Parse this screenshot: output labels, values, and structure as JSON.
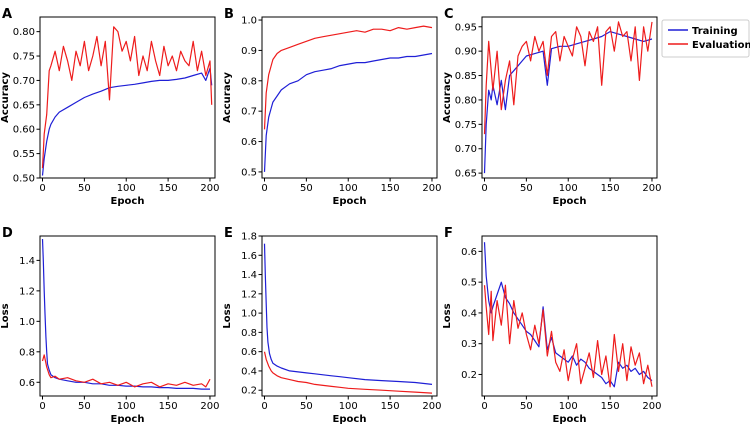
{
  "legend": {
    "entries": [
      {
        "label": "Training",
        "color": "#1f1fd6"
      },
      {
        "label": "Evaluation",
        "color": "#ee1c1c"
      }
    ]
  },
  "chart_data": [
    {
      "panel": "A",
      "type": "line",
      "xlabel": "Epoch",
      "ylabel": "Accuracy",
      "xlim": [
        -3,
        206
      ],
      "ylim": [
        0.5,
        0.83
      ],
      "xticks": [
        0,
        50,
        100,
        150,
        200
      ],
      "yticks": [
        0.5,
        0.55,
        0.6,
        0.65,
        0.7,
        0.75,
        0.8
      ],
      "ytick_labels": [
        "0.50",
        "0.55",
        "0.60",
        "0.65",
        "0.70",
        "0.75",
        "0.80"
      ],
      "series": [
        {
          "name": "Training",
          "x": [
            0,
            2,
            5,
            8,
            10,
            15,
            20,
            30,
            40,
            50,
            60,
            70,
            80,
            90,
            100,
            110,
            120,
            130,
            140,
            150,
            160,
            170,
            180,
            190,
            195,
            200,
            202
          ],
          "y": [
            0.505,
            0.54,
            0.575,
            0.6,
            0.61,
            0.625,
            0.635,
            0.645,
            0.655,
            0.665,
            0.672,
            0.678,
            0.685,
            0.688,
            0.69,
            0.692,
            0.695,
            0.698,
            0.7,
            0.7,
            0.702,
            0.705,
            0.71,
            0.715,
            0.7,
            0.725,
            0.69
          ]
        },
        {
          "name": "Evaluation",
          "x": [
            0,
            2,
            5,
            8,
            10,
            15,
            20,
            25,
            30,
            35,
            40,
            45,
            50,
            55,
            60,
            65,
            70,
            75,
            80,
            85,
            90,
            95,
            100,
            105,
            110,
            115,
            120,
            125,
            130,
            135,
            140,
            145,
            150,
            155,
            160,
            165,
            170,
            175,
            180,
            185,
            190,
            195,
            200,
            202
          ],
          "y": [
            0.52,
            0.59,
            0.63,
            0.72,
            0.73,
            0.76,
            0.72,
            0.77,
            0.74,
            0.7,
            0.76,
            0.73,
            0.78,
            0.72,
            0.75,
            0.79,
            0.73,
            0.78,
            0.66,
            0.81,
            0.8,
            0.76,
            0.78,
            0.74,
            0.79,
            0.71,
            0.75,
            0.72,
            0.78,
            0.74,
            0.71,
            0.77,
            0.73,
            0.75,
            0.72,
            0.76,
            0.74,
            0.73,
            0.78,
            0.72,
            0.76,
            0.71,
            0.74,
            0.65
          ]
        }
      ]
    },
    {
      "panel": "B",
      "type": "line",
      "xlabel": "Epoch",
      "ylabel": "Accuracy",
      "xlim": [
        -3,
        206
      ],
      "ylim": [
        0.48,
        1.01
      ],
      "xticks": [
        0,
        50,
        100,
        150,
        200
      ],
      "yticks": [
        0.5,
        0.6,
        0.7,
        0.8,
        0.9,
        1.0
      ],
      "ytick_labels": [
        "0.5",
        "0.6",
        "0.7",
        "0.8",
        "0.9",
        "1.0"
      ],
      "series": [
        {
          "name": "Training",
          "x": [
            0,
            2,
            5,
            8,
            10,
            15,
            20,
            30,
            40,
            50,
            60,
            70,
            80,
            90,
            100,
            110,
            120,
            130,
            140,
            150,
            160,
            170,
            180,
            190,
            200
          ],
          "y": [
            0.5,
            0.62,
            0.68,
            0.71,
            0.73,
            0.75,
            0.77,
            0.79,
            0.8,
            0.82,
            0.83,
            0.835,
            0.84,
            0.85,
            0.855,
            0.86,
            0.86,
            0.865,
            0.87,
            0.875,
            0.875,
            0.88,
            0.88,
            0.885,
            0.89
          ]
        },
        {
          "name": "Evaluation",
          "x": [
            0,
            2,
            5,
            8,
            10,
            15,
            20,
            30,
            40,
            50,
            60,
            70,
            80,
            90,
            100,
            110,
            120,
            130,
            140,
            150,
            160,
            170,
            180,
            190,
            200
          ],
          "y": [
            0.64,
            0.76,
            0.82,
            0.85,
            0.87,
            0.89,
            0.9,
            0.91,
            0.92,
            0.93,
            0.94,
            0.945,
            0.95,
            0.955,
            0.96,
            0.965,
            0.96,
            0.97,
            0.97,
            0.965,
            0.975,
            0.97,
            0.975,
            0.98,
            0.975
          ]
        }
      ]
    },
    {
      "panel": "C",
      "type": "line",
      "xlabel": "Epoch",
      "ylabel": "Accuracy",
      "xlim": [
        -3,
        206
      ],
      "ylim": [
        0.64,
        0.97
      ],
      "xticks": [
        0,
        50,
        100,
        150,
        200
      ],
      "yticks": [
        0.65,
        0.7,
        0.75,
        0.8,
        0.85,
        0.9,
        0.95
      ],
      "ytick_labels": [
        "0.65",
        "0.70",
        "0.75",
        "0.80",
        "0.85",
        "0.90",
        "0.95"
      ],
      "series": [
        {
          "name": "Training",
          "x": [
            0,
            2,
            5,
            8,
            10,
            15,
            20,
            25,
            30,
            35,
            40,
            45,
            50,
            60,
            70,
            75,
            80,
            90,
            100,
            110,
            120,
            130,
            140,
            150,
            160,
            170,
            180,
            190,
            200
          ],
          "y": [
            0.65,
            0.75,
            0.82,
            0.8,
            0.83,
            0.79,
            0.84,
            0.78,
            0.85,
            0.86,
            0.87,
            0.88,
            0.89,
            0.895,
            0.9,
            0.83,
            0.905,
            0.91,
            0.91,
            0.915,
            0.92,
            0.925,
            0.93,
            0.94,
            0.935,
            0.93,
            0.925,
            0.92,
            0.925
          ]
        },
        {
          "name": "Evaluation",
          "x": [
            0,
            2,
            5,
            8,
            10,
            15,
            20,
            25,
            30,
            35,
            40,
            45,
            50,
            55,
            60,
            65,
            70,
            75,
            80,
            85,
            90,
            95,
            100,
            105,
            110,
            115,
            120,
            125,
            130,
            135,
            140,
            145,
            150,
            155,
            160,
            165,
            170,
            175,
            180,
            185,
            190,
            195,
            200
          ],
          "y": [
            0.73,
            0.83,
            0.92,
            0.86,
            0.82,
            0.9,
            0.78,
            0.84,
            0.88,
            0.79,
            0.89,
            0.91,
            0.92,
            0.88,
            0.93,
            0.9,
            0.92,
            0.85,
            0.93,
            0.94,
            0.88,
            0.93,
            0.91,
            0.89,
            0.95,
            0.93,
            0.87,
            0.94,
            0.92,
            0.95,
            0.83,
            0.94,
            0.95,
            0.9,
            0.96,
            0.93,
            0.94,
            0.88,
            0.95,
            0.84,
            0.95,
            0.9,
            0.96
          ]
        }
      ]
    },
    {
      "panel": "D",
      "type": "line",
      "xlabel": "Epoch",
      "ylabel": "Loss",
      "xlim": [
        -3,
        206
      ],
      "ylim": [
        0.51,
        1.56
      ],
      "xticks": [
        0,
        50,
        100,
        150,
        200
      ],
      "yticks": [
        0.6,
        0.8,
        1.0,
        1.2,
        1.4
      ],
      "ytick_labels": [
        "0.6",
        "0.8",
        "1.0",
        "1.2",
        "1.4"
      ],
      "series": [
        {
          "name": "Training",
          "x": [
            0,
            1,
            2,
            3,
            4,
            5,
            6,
            8,
            10,
            15,
            20,
            30,
            40,
            50,
            60,
            70,
            80,
            90,
            100,
            110,
            120,
            130,
            140,
            150,
            160,
            170,
            180,
            190,
            200
          ],
          "y": [
            1.54,
            1.4,
            1.2,
            1.05,
            0.9,
            0.8,
            0.72,
            0.68,
            0.65,
            0.63,
            0.62,
            0.61,
            0.6,
            0.6,
            0.59,
            0.59,
            0.58,
            0.58,
            0.575,
            0.575,
            0.57,
            0.57,
            0.565,
            0.565,
            0.56,
            0.56,
            0.56,
            0.555,
            0.555
          ]
        },
        {
          "name": "Evaluation",
          "x": [
            0,
            2,
            5,
            8,
            10,
            15,
            20,
            30,
            40,
            50,
            60,
            70,
            80,
            90,
            100,
            110,
            120,
            130,
            140,
            150,
            160,
            170,
            180,
            190,
            195,
            200
          ],
          "y": [
            0.74,
            0.78,
            0.7,
            0.65,
            0.63,
            0.64,
            0.62,
            0.63,
            0.61,
            0.6,
            0.62,
            0.59,
            0.6,
            0.58,
            0.6,
            0.57,
            0.59,
            0.6,
            0.57,
            0.59,
            0.58,
            0.6,
            0.58,
            0.59,
            0.57,
            0.62
          ]
        }
      ]
    },
    {
      "panel": "E",
      "type": "line",
      "xlabel": "Epoch",
      "ylabel": "Loss",
      "xlim": [
        -3,
        206
      ],
      "ylim": [
        0.14,
        1.8
      ],
      "xticks": [
        0,
        50,
        100,
        150,
        200
      ],
      "yticks": [
        0.2,
        0.4,
        0.6,
        0.8,
        1.0,
        1.2,
        1.4,
        1.6,
        1.8
      ],
      "ytick_labels": [
        "0.2",
        "0.4",
        "0.6",
        "0.8",
        "1.0",
        "1.2",
        "1.4",
        "1.6",
        "1.8"
      ],
      "series": [
        {
          "name": "Training",
          "x": [
            0,
            1,
            2,
            3,
            4,
            6,
            8,
            10,
            15,
            20,
            30,
            40,
            50,
            60,
            70,
            80,
            90,
            100,
            120,
            140,
            160,
            180,
            200
          ],
          "y": [
            1.72,
            1.4,
            1.1,
            0.85,
            0.7,
            0.58,
            0.52,
            0.48,
            0.45,
            0.43,
            0.4,
            0.39,
            0.38,
            0.37,
            0.36,
            0.35,
            0.34,
            0.33,
            0.31,
            0.3,
            0.29,
            0.28,
            0.26
          ]
        },
        {
          "name": "Evaluation",
          "x": [
            0,
            2,
            5,
            8,
            10,
            15,
            20,
            30,
            40,
            50,
            60,
            70,
            80,
            90,
            100,
            120,
            140,
            160,
            180,
            200
          ],
          "y": [
            0.6,
            0.52,
            0.45,
            0.4,
            0.38,
            0.35,
            0.33,
            0.31,
            0.29,
            0.28,
            0.26,
            0.25,
            0.24,
            0.23,
            0.22,
            0.21,
            0.2,
            0.19,
            0.18,
            0.17
          ]
        }
      ]
    },
    {
      "panel": "F",
      "type": "line",
      "xlabel": "Epoch",
      "ylabel": "Loss",
      "xlim": [
        -3,
        206
      ],
      "ylim": [
        0.13,
        0.65
      ],
      "xticks": [
        0,
        50,
        100,
        150,
        200
      ],
      "yticks": [
        0.2,
        0.3,
        0.4,
        0.5,
        0.6
      ],
      "ytick_labels": [
        "0.2",
        "0.3",
        "0.4",
        "0.5",
        "0.6"
      ],
      "series": [
        {
          "name": "Training",
          "x": [
            0,
            2,
            5,
            8,
            10,
            15,
            20,
            25,
            30,
            35,
            40,
            45,
            50,
            55,
            60,
            65,
            70,
            75,
            80,
            85,
            90,
            95,
            100,
            105,
            110,
            115,
            120,
            125,
            130,
            135,
            140,
            145,
            150,
            155,
            160,
            165,
            170,
            175,
            180,
            185,
            190,
            195,
            200
          ],
          "y": [
            0.63,
            0.52,
            0.44,
            0.4,
            0.42,
            0.46,
            0.5,
            0.45,
            0.43,
            0.4,
            0.38,
            0.36,
            0.34,
            0.33,
            0.31,
            0.29,
            0.42,
            0.28,
            0.32,
            0.27,
            0.26,
            0.25,
            0.24,
            0.26,
            0.23,
            0.25,
            0.24,
            0.22,
            0.21,
            0.2,
            0.19,
            0.17,
            0.18,
            0.16,
            0.24,
            0.22,
            0.23,
            0.21,
            0.22,
            0.2,
            0.21,
            0.19,
            0.18
          ]
        },
        {
          "name": "Evaluation",
          "x": [
            0,
            2,
            5,
            8,
            10,
            15,
            20,
            25,
            30,
            35,
            40,
            45,
            50,
            55,
            60,
            65,
            70,
            75,
            80,
            85,
            90,
            95,
            100,
            105,
            110,
            115,
            120,
            125,
            130,
            135,
            140,
            145,
            150,
            155,
            160,
            165,
            170,
            175,
            180,
            185,
            190,
            195,
            200
          ],
          "y": [
            0.49,
            0.42,
            0.33,
            0.47,
            0.31,
            0.44,
            0.36,
            0.49,
            0.3,
            0.44,
            0.35,
            0.4,
            0.33,
            0.28,
            0.36,
            0.3,
            0.41,
            0.26,
            0.34,
            0.24,
            0.21,
            0.28,
            0.18,
            0.25,
            0.3,
            0.17,
            0.22,
            0.27,
            0.19,
            0.31,
            0.2,
            0.26,
            0.16,
            0.33,
            0.21,
            0.3,
            0.18,
            0.29,
            0.23,
            0.27,
            0.17,
            0.23,
            0.16
          ]
        }
      ]
    }
  ]
}
